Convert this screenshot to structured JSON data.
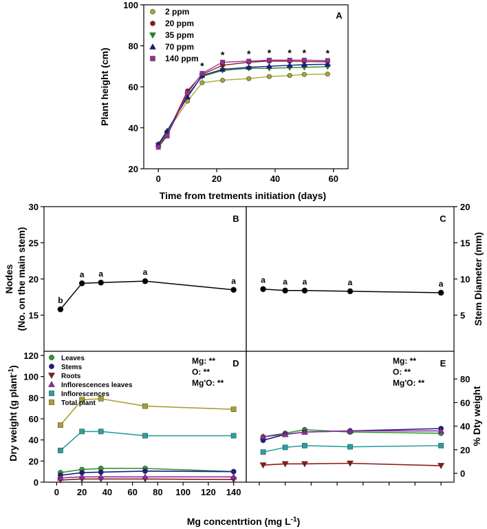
{
  "chart_data": [
    {
      "panel": "A",
      "type": "line",
      "xlabel": "Time from tretments initiation (days)",
      "ylabel": "Plant height (cm)",
      "xlim": [
        -5,
        65
      ],
      "ylim": [
        20,
        100
      ],
      "xticks": [
        0,
        20,
        40,
        60
      ],
      "yticks": [
        20,
        40,
        60,
        80,
        100
      ],
      "x": [
        0,
        3,
        10,
        15,
        22,
        31,
        38,
        45,
        50,
        58
      ],
      "series": [
        {
          "name": "2 ppm",
          "color": "#a8a832",
          "marker": "circle",
          "values": [
            32,
            38,
            53,
            62,
            63.2,
            64,
            65,
            65.5,
            66,
            66.2
          ]
        },
        {
          "name": "20 ppm",
          "color": "#8b1a1a",
          "marker": "circle",
          "values": [
            31,
            37,
            58,
            66,
            70.5,
            72,
            72.5,
            72.5,
            72.3,
            72.2
          ]
        },
        {
          "name": "35 ppm",
          "color": "#1a8c1a",
          "marker": "triangle-down",
          "values": [
            31.5,
            37.5,
            56,
            65,
            68,
            69,
            69,
            69.3,
            69.5,
            69.8
          ]
        },
        {
          "name": "70 ppm",
          "color": "#1a1a8c",
          "marker": "triangle-up",
          "values": [
            32,
            38.5,
            55,
            65.5,
            68.5,
            69.5,
            70,
            70.5,
            70.8,
            71
          ]
        },
        {
          "name": "140 ppm",
          "color": "#9a2c9a",
          "marker": "square",
          "values": [
            30.5,
            36,
            57,
            66.5,
            72,
            72.5,
            73,
            73,
            73,
            72.8
          ]
        }
      ],
      "annotations": [
        {
          "x": 15,
          "text": "*"
        },
        {
          "x": 22,
          "text": "*"
        },
        {
          "x": 31,
          "text": "*"
        },
        {
          "x": 38,
          "text": "*"
        },
        {
          "x": 45,
          "text": "*"
        },
        {
          "x": 50,
          "text": "*"
        },
        {
          "x": 58,
          "text": "*"
        }
      ],
      "legend": "top-left"
    },
    {
      "panel": "B",
      "type": "line",
      "ylabel_line1": "Nodes",
      "ylabel_line2": "(No. on the main stem)",
      "ylim": [
        10,
        30
      ],
      "yticks": [
        15,
        20,
        25,
        30
      ],
      "x": [
        3,
        20,
        35,
        70,
        140
      ],
      "series": [
        {
          "color": "#000000",
          "values": [
            15.8,
            19.4,
            19.5,
            19.7,
            18.5
          ]
        }
      ],
      "letters": [
        "b",
        "a",
        "a",
        "a",
        "a"
      ]
    },
    {
      "panel": "C",
      "type": "line",
      "ylabel": "Stem Diameter (mm)",
      "ylim": [
        0,
        20
      ],
      "yticks": [
        5,
        10,
        15,
        20
      ],
      "x": [
        3,
        20,
        35,
        70,
        140
      ],
      "series": [
        {
          "color": "#000000",
          "values": [
            8.6,
            8.4,
            8.4,
            8.3,
            8.1
          ]
        }
      ],
      "letters": [
        "a",
        "a",
        "a",
        "a",
        "a"
      ]
    },
    {
      "panel": "D",
      "type": "line",
      "ylabel": "Dry weight (g plant",
      "ylabel_sup": "-1",
      "ylabel_end": ")",
      "ylim": [
        0,
        120
      ],
      "yticks": [
        0,
        20,
        40,
        60,
        80,
        100,
        120
      ],
      "xlim": [
        -10,
        150
      ],
      "xticks": [
        0,
        20,
        40,
        60,
        80,
        100,
        120,
        140
      ],
      "x": [
        3,
        20,
        35,
        70,
        140
      ],
      "series": [
        {
          "name": "Leaves",
          "color": "#2e9a2e",
          "marker": "circle",
          "values": [
            9,
            12,
            13,
            13,
            10
          ]
        },
        {
          "name": "Stems",
          "color": "#1c1c8c",
          "marker": "circle",
          "values": [
            6.5,
            9,
            9.5,
            10.5,
            10
          ]
        },
        {
          "name": "Roots",
          "color": "#8b1a1a",
          "marker": "triangle-down",
          "values": [
            2,
            3,
            3,
            3,
            2.5
          ]
        },
        {
          "name": "Inflorescences leaves",
          "color": "#8b2c9a",
          "marker": "triangle-up",
          "values": [
            4,
            5,
            5,
            5,
            5
          ]
        },
        {
          "name": "Inflorescences",
          "color": "#2aa0a0",
          "marker": "square",
          "values": [
            30,
            48,
            48,
            44,
            44
          ]
        },
        {
          "name": "Total plant",
          "color": "#a8a032",
          "marker": "square",
          "values": [
            54,
            78,
            79,
            72,
            69
          ]
        }
      ],
      "stats": [
        "Mg: **",
        "O: **",
        "Mg'O: **"
      ],
      "legend": "top-left"
    },
    {
      "panel": "E",
      "type": "line",
      "ylabel": "% Dty weight",
      "ylim": [
        -7.5,
        100
      ],
      "yticks": [
        0,
        20,
        40,
        60,
        80
      ],
      "xlim": [
        -10,
        150
      ],
      "xticks": [
        0,
        20,
        40,
        60,
        80,
        100,
        120,
        140
      ],
      "x": [
        3,
        20,
        35,
        70,
        140
      ],
      "series": [
        {
          "name": "Leaves",
          "color": "#2e9a2e",
          "marker": "circle",
          "values": [
            31,
            34,
            37,
            35,
            34
          ]
        },
        {
          "name": "Stems",
          "color": "#1c1c8c",
          "marker": "circle",
          "values": [
            28,
            33,
            35,
            36,
            38
          ]
        },
        {
          "name": "Roots",
          "color": "#8b1a1a",
          "marker": "triangle-down",
          "values": [
            7,
            8,
            8,
            8.5,
            6.5
          ]
        },
        {
          "name": "Inflorescences leaves",
          "color": "#8b2c9a",
          "marker": "triangle-up",
          "values": [
            31,
            33,
            35,
            36,
            36
          ]
        },
        {
          "name": "Inflorescences",
          "color": "#2aa0a0",
          "marker": "square",
          "values": [
            18,
            22,
            23.5,
            22.5,
            23.5
          ]
        }
      ],
      "stats": [
        "Mg: **",
        "O: **",
        "Mg'O: **"
      ]
    }
  ],
  "shared_xlabel": "Mg concentrtion (mg L",
  "shared_xlabel_sup": "-1",
  "shared_xlabel_end": ")"
}
